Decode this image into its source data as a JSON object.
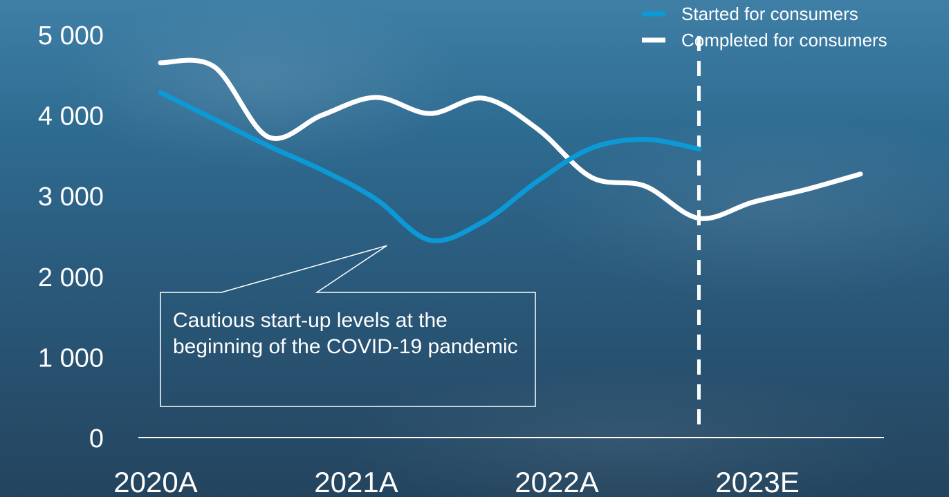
{
  "chart_data": {
    "type": "line",
    "title": "",
    "xlabel": "",
    "ylabel": "",
    "ylim": [
      0,
      5000
    ],
    "yticks": [
      0,
      1000,
      2000,
      3000,
      4000,
      5000
    ],
    "ytick_labels": [
      "0",
      "1 000",
      "2 000",
      "3 000",
      "4 000",
      "5 000"
    ],
    "categories": [
      "2020A",
      "2021A",
      "2022A",
      "2023E"
    ],
    "xlim": [
      0,
      13
    ],
    "grid": false,
    "legend_position": "top-right",
    "series": [
      {
        "name": "Started for consumers",
        "color": "#0b9ad6",
        "dashed": false,
        "points": [
          [
            0,
            4280
          ],
          [
            1,
            3950
          ],
          [
            2,
            3620
          ],
          [
            3,
            3320
          ],
          [
            4,
            2960
          ],
          [
            5,
            2450
          ],
          [
            6,
            2680
          ],
          [
            7,
            3180
          ],
          [
            8,
            3590
          ],
          [
            9,
            3700
          ],
          [
            10,
            3580
          ]
        ]
      },
      {
        "name": "Completed for consumers",
        "color": "#ffffff",
        "dashed": false,
        "points": [
          [
            0,
            4650
          ],
          [
            1,
            4600
          ],
          [
            2,
            3730
          ],
          [
            3,
            4000
          ],
          [
            4,
            4220
          ],
          [
            5,
            4020
          ],
          [
            6,
            4210
          ],
          [
            7,
            3830
          ],
          [
            8,
            3230
          ],
          [
            9,
            3120
          ],
          [
            10,
            2720
          ],
          [
            11,
            2920
          ],
          [
            12,
            3080
          ],
          [
            13,
            3270
          ]
        ]
      }
    ],
    "forecast_divider_x": 10,
    "annotation": "Cautious start-up levels at the beginning of the COVID-19 pandemic",
    "annotation_target": [
      5,
      2450
    ]
  }
}
